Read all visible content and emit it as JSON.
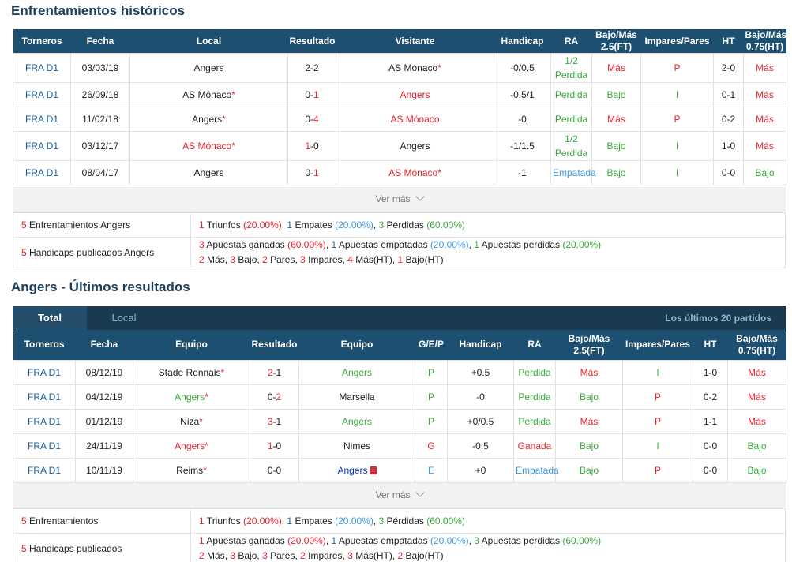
{
  "h2h": {
    "title": "Enfrentamientos históricos",
    "headers": [
      "Torneros",
      "Fecha",
      "Local",
      "Resultado",
      "Visitante",
      "Handicap",
      "RA",
      "Bajo/Más 2.5(FT)",
      "Impares/Pares",
      "HT",
      "Bajo/Más 0.75(HT)"
    ],
    "rows": [
      {
        "league": "FRA D1",
        "date": "03/03/19",
        "home": "Angers",
        "home_star": false,
        "home_color": "dark",
        "score_h": "2",
        "score_a": "2",
        "sh_color": "dark",
        "sa_color": "dark",
        "away": "AS Mónaco",
        "away_star": true,
        "away_color": "dark",
        "handicap": "-0/0.5",
        "ra1": "1/2",
        "ra2": "Perdida",
        "ra_color": "green",
        "ou": "Más",
        "ou_color": "red",
        "oe": "P",
        "oe_color": "red",
        "ht": "2-0",
        "ouht": "Más",
        "ouht_color": "red"
      },
      {
        "league": "FRA D1",
        "date": "26/09/18",
        "home": "AS Mónaco",
        "home_star": true,
        "home_color": "dark",
        "score_h": "0",
        "score_a": "1",
        "sh_color": "dark",
        "sa_color": "red",
        "away": "Angers",
        "away_star": false,
        "away_color": "red",
        "handicap": "-0.5/1",
        "ra1": "",
        "ra2": "Perdida",
        "ra_color": "green",
        "ou": "Bajo",
        "ou_color": "green",
        "oe": "I",
        "oe_color": "green",
        "ht": "0-1",
        "ouht": "Más",
        "ouht_color": "red"
      },
      {
        "league": "FRA D1",
        "date": "11/02/18",
        "home": "Angers",
        "home_star": true,
        "home_color": "dark",
        "score_h": "0",
        "score_a": "4",
        "sh_color": "dark",
        "sa_color": "red",
        "away": "AS Mónaco",
        "away_star": false,
        "away_color": "red",
        "handicap": "-0",
        "ra1": "",
        "ra2": "Perdida",
        "ra_color": "green",
        "ou": "Más",
        "ou_color": "red",
        "oe": "P",
        "oe_color": "red",
        "ht": "0-2",
        "ouht": "Más",
        "ouht_color": "red"
      },
      {
        "league": "FRA D1",
        "date": "03/12/17",
        "home": "AS Mónaco",
        "home_star": true,
        "home_color": "red",
        "score_h": "1",
        "score_a": "0",
        "sh_color": "red",
        "sa_color": "dark",
        "away": "Angers",
        "away_star": false,
        "away_color": "dark",
        "handicap": "-1/1.5",
        "ra1": "1/2",
        "ra2": "Perdida",
        "ra_color": "green",
        "ou": "Bajo",
        "ou_color": "green",
        "oe": "I",
        "oe_color": "green",
        "ht": "1-0",
        "ouht": "Más",
        "ouht_color": "red"
      },
      {
        "league": "FRA D1",
        "date": "08/04/17",
        "home": "Angers",
        "home_star": false,
        "home_color": "dark",
        "score_h": "0",
        "score_a": "1",
        "sh_color": "dark",
        "sa_color": "red",
        "away": "AS Mónaco",
        "away_star": true,
        "away_color": "red",
        "handicap": "-1",
        "ra1": "",
        "ra2": "Empatada",
        "ra_color": "lblue",
        "ou": "Bajo",
        "ou_color": "green",
        "oe": "I",
        "oe_color": "green",
        "ht": "0-0",
        "ouht": "Bajo",
        "ouht_color": "green"
      }
    ],
    "more": "Ver más",
    "summary": {
      "l1_num": "5",
      "l1_text": "Enfrentamientos Angers",
      "s1": [
        "1",
        " Triunfos ",
        "(20.00%)",
        ", ",
        "1",
        " Empates ",
        "(20.00%)",
        ", ",
        "3",
        " Pérdidas ",
        "(60.00%)"
      ],
      "l2_num": "5",
      "l2_text": "Handicaps publicados Angers",
      "s2a": [
        "3",
        " Apuestas ganadas ",
        "(60.00%)",
        ", ",
        "1",
        " Apuestas empatadas ",
        "(20.00%)",
        ", ",
        "1",
        " Apuestas perdidas ",
        "(20.00%)"
      ],
      "s2b": [
        "2",
        " Más, ",
        "3",
        " Bajo, ",
        "2",
        " Pares, ",
        "3",
        " Impares, ",
        "4",
        " Más(HT), ",
        "1",
        " Bajo(HT)"
      ]
    }
  },
  "recent": {
    "title": "Angers - Últimos resultados",
    "tab_total": "Total",
    "tab_local": "Local",
    "last20": "Los últimos 20 partidos",
    "headers": [
      "Torneros",
      "Fecha",
      "Equipo",
      "Resultado",
      "Equipo",
      "G/E/P",
      "Handicap",
      "RA",
      "Bajo/Más 2.5(FT)",
      "Impares/Pares",
      "HT",
      "Bajo/Más 0.75(HT)"
    ],
    "rows": [
      {
        "league": "FRA D1",
        "date": "08/12/19",
        "home": "Stade Rennais",
        "home_star": true,
        "home_color": "dark",
        "score_h": "2",
        "score_a": "1",
        "sh_color": "red",
        "sa_color": "dark",
        "away": "Angers",
        "away_color": "green",
        "away_flag": false,
        "gep": "P",
        "gep_color": "green",
        "handicap": "+0.5",
        "ra": "Perdida",
        "ra_color": "green",
        "ou": "Más",
        "ou_color": "red",
        "oe": "I",
        "oe_color": "green",
        "ht": "1-0",
        "ouht": "Más",
        "ouht_color": "red"
      },
      {
        "league": "FRA D1",
        "date": "04/12/19",
        "home": "Angers",
        "home_star": true,
        "home_color": "green",
        "score_h": "0",
        "score_a": "2",
        "sh_color": "dark",
        "sa_color": "red",
        "away": "Marsella",
        "away_color": "dark",
        "away_flag": false,
        "gep": "P",
        "gep_color": "green",
        "handicap": "-0",
        "ra": "Perdida",
        "ra_color": "green",
        "ou": "Bajo",
        "ou_color": "green",
        "oe": "P",
        "oe_color": "red",
        "ht": "0-2",
        "ouht": "Más",
        "ouht_color": "red"
      },
      {
        "league": "FRA D1",
        "date": "01/12/19",
        "home": "Niza",
        "home_star": true,
        "home_color": "dark",
        "score_h": "3",
        "score_a": "1",
        "sh_color": "red",
        "sa_color": "dark",
        "away": "Angers",
        "away_color": "green",
        "away_flag": false,
        "gep": "P",
        "gep_color": "green",
        "handicap": "+0/0.5",
        "ra": "Perdida",
        "ra_color": "green",
        "ou": "Más",
        "ou_color": "red",
        "oe": "P",
        "oe_color": "red",
        "ht": "1-1",
        "ouht": "Más",
        "ouht_color": "red"
      },
      {
        "league": "FRA D1",
        "date": "24/11/19",
        "home": "Angers",
        "home_star": true,
        "home_color": "red",
        "score_h": "1",
        "score_a": "0",
        "sh_color": "red",
        "sa_color": "dark",
        "away": "Nimes",
        "away_color": "dark",
        "away_flag": false,
        "gep": "G",
        "gep_color": "red",
        "handicap": "-0.5",
        "ra": "Ganada",
        "ra_color": "red",
        "ou": "Bajo",
        "ou_color": "green",
        "oe": "I",
        "oe_color": "green",
        "ht": "0-0",
        "ouht": "Bajo",
        "ouht_color": "green"
      },
      {
        "league": "FRA D1",
        "date": "10/11/19",
        "home": "Reims",
        "home_star": true,
        "home_color": "dark",
        "score_h": "0",
        "score_a": "0",
        "sh_color": "dark",
        "sa_color": "dark",
        "away": "Angers",
        "away_color": "navy",
        "away_flag": true,
        "gep": "E",
        "gep_color": "lblue",
        "handicap": "+0",
        "ra": "Empatada",
        "ra_color": "lblue",
        "ou": "Bajo",
        "ou_color": "green",
        "oe": "P",
        "oe_color": "red",
        "ht": "0-0",
        "ouht": "Bajo",
        "ouht_color": "green"
      }
    ],
    "more": "Ver más",
    "summary": {
      "l1_num": "5",
      "l1_text": "Enfrentamientos",
      "s1": [
        "1",
        " Triunfos ",
        "(20.00%)",
        ", ",
        "1",
        " Empates ",
        "(20.00%)",
        ", ",
        "3",
        " Pérdidas ",
        "(60.00%)"
      ],
      "l2_num": "5",
      "l2_text": "Handicaps publicados",
      "s2a": [
        "1",
        " Apuestas ganadas ",
        "(20.00%)",
        ", ",
        "1",
        " Apuestas empatadas ",
        "(20.00%)",
        ", ",
        "3",
        " Apuestas perdidas ",
        "(60.00%)"
      ],
      "s2b": [
        "2",
        " Más, ",
        "3",
        " Bajo, ",
        "3",
        " Pares, ",
        "2",
        " Impares, ",
        "3",
        " Más(HT), ",
        "2",
        " Bajo(HT)"
      ]
    }
  },
  "colors": {
    "header_bg": "#1d4f70",
    "tab_bg": "#1a3a52",
    "red": "#e8232d",
    "green": "#3aaa3e",
    "light_blue": "#3d9be6",
    "link_blue": "#1a5c9e",
    "title": "#1c3f5e"
  }
}
